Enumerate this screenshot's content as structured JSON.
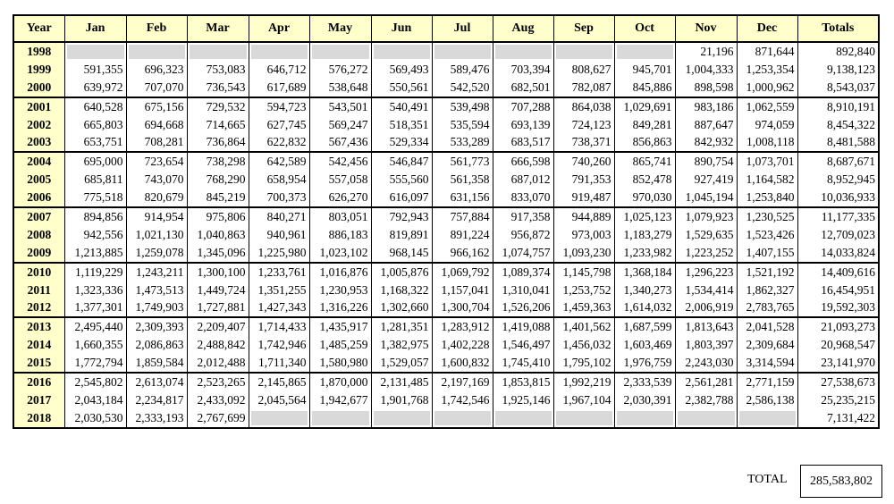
{
  "table": {
    "columns": [
      "Year",
      "Jan",
      "Feb",
      "Mar",
      "Apr",
      "May",
      "Jun",
      "Jul",
      "Aug",
      "Sep",
      "Oct",
      "Nov",
      "Dec",
      "Totals"
    ],
    "rows": [
      [
        "1998",
        null,
        null,
        null,
        null,
        null,
        null,
        null,
        null,
        null,
        null,
        "21,196",
        "871,644",
        "892,840"
      ],
      [
        "1999",
        "591,355",
        "696,323",
        "753,083",
        "646,712",
        "576,272",
        "569,493",
        "589,476",
        "703,394",
        "808,627",
        "945,701",
        "1,004,333",
        "1,253,354",
        "9,138,123"
      ],
      [
        "2000",
        "639,972",
        "707,070",
        "736,543",
        "617,689",
        "538,648",
        "550,561",
        "542,520",
        "682,501",
        "782,087",
        "845,886",
        "898,598",
        "1,000,962",
        "8,543,037"
      ],
      [
        "2001",
        "640,528",
        "675,156",
        "729,532",
        "594,723",
        "543,501",
        "540,491",
        "539,498",
        "707,288",
        "864,038",
        "1,029,691",
        "983,186",
        "1,062,559",
        "8,910,191"
      ],
      [
        "2002",
        "665,803",
        "694,668",
        "714,665",
        "627,745",
        "569,247",
        "518,351",
        "535,594",
        "693,139",
        "724,123",
        "849,281",
        "887,647",
        "974,059",
        "8,454,322"
      ],
      [
        "2003",
        "653,751",
        "708,281",
        "736,864",
        "622,832",
        "567,436",
        "529,334",
        "533,289",
        "683,517",
        "738,371",
        "856,863",
        "842,932",
        "1,008,118",
        "8,481,588"
      ],
      [
        "2004",
        "695,000",
        "723,654",
        "738,298",
        "642,589",
        "542,456",
        "546,847",
        "561,773",
        "666,598",
        "740,260",
        "865,741",
        "890,754",
        "1,073,701",
        "8,687,671"
      ],
      [
        "2005",
        "685,811",
        "743,070",
        "768,290",
        "658,954",
        "557,058",
        "555,560",
        "561,358",
        "687,012",
        "791,353",
        "852,478",
        "927,419",
        "1,164,582",
        "8,952,945"
      ],
      [
        "2006",
        "775,518",
        "820,679",
        "845,219",
        "700,373",
        "626,270",
        "616,097",
        "631,156",
        "833,070",
        "919,487",
        "970,030",
        "1,045,194",
        "1,253,840",
        "10,036,933"
      ],
      [
        "2007",
        "894,856",
        "914,954",
        "975,806",
        "840,271",
        "803,051",
        "792,943",
        "757,884",
        "917,358",
        "944,889",
        "1,025,123",
        "1,079,923",
        "1,230,525",
        "11,177,335"
      ],
      [
        "2008",
        "942,556",
        "1,021,130",
        "1,040,863",
        "940,961",
        "886,183",
        "819,891",
        "891,224",
        "956,872",
        "973,003",
        "1,183,279",
        "1,529,635",
        "1,523,426",
        "12,709,023"
      ],
      [
        "2009",
        "1,213,885",
        "1,259,078",
        "1,345,096",
        "1,225,980",
        "1,023,102",
        "968,145",
        "966,162",
        "1,074,757",
        "1,093,230",
        "1,233,982",
        "1,223,252",
        "1,407,155",
        "14,033,824"
      ],
      [
        "2010",
        "1,119,229",
        "1,243,211",
        "1,300,100",
        "1,233,761",
        "1,016,876",
        "1,005,876",
        "1,069,792",
        "1,089,374",
        "1,145,798",
        "1,368,184",
        "1,296,223",
        "1,521,192",
        "14,409,616"
      ],
      [
        "2011",
        "1,323,336",
        "1,473,513",
        "1,449,724",
        "1,351,255",
        "1,230,953",
        "1,168,322",
        "1,157,041",
        "1,310,041",
        "1,253,752",
        "1,340,273",
        "1,534,414",
        "1,862,327",
        "16,454,951"
      ],
      [
        "2012",
        "1,377,301",
        "1,749,903",
        "1,727,881",
        "1,427,343",
        "1,316,226",
        "1,302,660",
        "1,300,704",
        "1,526,206",
        "1,459,363",
        "1,614,032",
        "2,006,919",
        "2,783,765",
        "19,592,303"
      ],
      [
        "2013",
        "2,495,440",
        "2,309,393",
        "2,209,407",
        "1,714,433",
        "1,435,917",
        "1,281,351",
        "1,283,912",
        "1,419,088",
        "1,401,562",
        "1,687,599",
        "1,813,643",
        "2,041,528",
        "21,093,273"
      ],
      [
        "2014",
        "1,660,355",
        "2,086,863",
        "2,488,842",
        "1,742,946",
        "1,485,259",
        "1,382,975",
        "1,402,228",
        "1,546,497",
        "1,456,032",
        "1,603,469",
        "1,803,397",
        "2,309,684",
        "20,968,547"
      ],
      [
        "2015",
        "1,772,794",
        "1,859,584",
        "2,012,488",
        "1,711,340",
        "1,580,980",
        "1,529,057",
        "1,600,832",
        "1,745,410",
        "1,795,102",
        "1,976,759",
        "2,243,030",
        "3,314,594",
        "23,141,970"
      ],
      [
        "2016",
        "2,545,802",
        "2,613,074",
        "2,523,265",
        "2,145,865",
        "1,870,000",
        "2,131,485",
        "2,197,169",
        "1,853,815",
        "1,992,219",
        "2,333,539",
        "2,561,281",
        "2,771,159",
        "27,538,673"
      ],
      [
        "2017",
        "2,043,184",
        "2,234,817",
        "2,433,092",
        "2,045,564",
        "1,942,677",
        "1,901,768",
        "1,742,546",
        "1,925,146",
        "1,967,104",
        "2,030,391",
        "2,382,788",
        "2,586,138",
        "25,235,215"
      ],
      [
        "2018",
        "2,030,530",
        "2,333,193",
        "2,767,699",
        null,
        null,
        null,
        null,
        null,
        null,
        null,
        null,
        null,
        "7,131,422"
      ]
    ]
  },
  "grand_total": {
    "label": "TOTAL",
    "value": "285,583,802"
  }
}
